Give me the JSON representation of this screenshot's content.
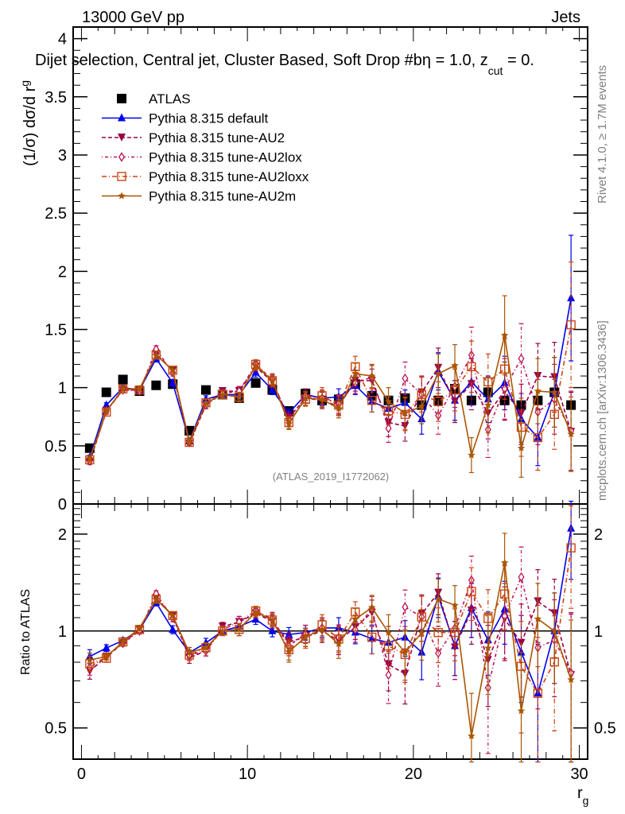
{
  "header": {
    "left": "13000 GeV pp",
    "right": "Jets"
  },
  "side_labels": {
    "rivet": "Rivet 4.1.0, ≥ 1.7M events",
    "mcplots": "mcplots.cern.ch [arXiv:1306.3436]"
  },
  "chart_data": [
    {
      "type": "line",
      "panel": "main",
      "title": "Dijet selection, Central jet, Cluster Based, Soft Drop #beta = 1.0, z_cut = 0.",
      "title_parts": {
        "main": "Dijet selection, Central jet, Cluster Based, Soft Drop #b",
        "eq": "η = 1.0, z",
        "sub": "cut",
        "tail": " = 0."
      },
      "xlabel": "",
      "ylabel": "(1/σ) dσ/d r",
      "ylabel_sub": "g",
      "xlim": [
        -0.5,
        30.5
      ],
      "ylim": [
        0,
        4.1
      ],
      "yticks": [
        0,
        0.5,
        1,
        1.5,
        2,
        2.5,
        3,
        3.5,
        4
      ],
      "ytick_labels": [
        "0",
        "0.5",
        "1",
        "1.5",
        "2",
        "2.5",
        "3",
        "3.5",
        "4"
      ],
      "watermark": "(ATLAS_2019_I1772062)",
      "legend_position": "top-left",
      "x": [
        0.5,
        1.5,
        2.5,
        3.5,
        4.5,
        5.5,
        6.5,
        7.5,
        8.5,
        9.5,
        10.5,
        11.5,
        12.5,
        13.5,
        14.5,
        15.5,
        16.5,
        17.5,
        18.5,
        19.5,
        20.5,
        21.5,
        22.5,
        23.5,
        24.5,
        25.5,
        26.5,
        27.5,
        28.5,
        29.5
      ],
      "series": [
        {
          "name": "ATLAS",
          "color": "#000000",
          "marker": "square",
          "style": "none",
          "values": [
            0.48,
            0.96,
            1.07,
            0.97,
            1.02,
            1.03,
            0.63,
            0.98,
            0.94,
            0.91,
            1.04,
            0.98,
            0.8,
            0.95,
            0.89,
            0.9,
            1.03,
            0.93,
            0.89,
            0.91,
            0.85,
            0.89,
            0.99,
            0.89,
            0.96,
            0.89,
            0.85,
            0.89,
            0.96,
            0.85
          ],
          "errors": [
            0.01,
            0.01,
            0.01,
            0.01,
            0.01,
            0.01,
            0.01,
            0.01,
            0.01,
            0.01,
            0.01,
            0.01,
            0.01,
            0.01,
            0.01,
            0.01,
            0.01,
            0.01,
            0.01,
            0.01,
            0.01,
            0.01,
            0.01,
            0.01,
            0.01,
            0.01,
            0.01,
            0.01,
            0.01,
            0.01
          ]
        },
        {
          "name": "Pythia 8.315 default",
          "color": "#0000ee",
          "marker": "triangle-up",
          "style": "solid",
          "values": [
            0.4,
            0.85,
            1.0,
            0.98,
            1.25,
            1.04,
            0.54,
            0.9,
            0.94,
            0.94,
            1.13,
            0.98,
            0.78,
            0.94,
            0.91,
            0.92,
            1.02,
            0.88,
            0.82,
            0.87,
            0.73,
            1.14,
            0.89,
            1.05,
            0.9,
            1.04,
            0.73,
            0.57,
            0.96,
            1.77
          ],
          "errors": [
            0.02,
            0.02,
            0.02,
            0.02,
            0.03,
            0.03,
            0.02,
            0.03,
            0.03,
            0.03,
            0.04,
            0.04,
            0.04,
            0.05,
            0.06,
            0.07,
            0.08,
            0.09,
            0.1,
            0.11,
            0.13,
            0.16,
            0.17,
            0.2,
            0.2,
            0.23,
            0.22,
            0.24,
            0.3,
            0.54
          ]
        },
        {
          "name": "Pythia 8.315 tune-AU2",
          "color": "#990044",
          "marker": "triangle-down",
          "style": "dashed",
          "values": [
            0.36,
            0.8,
            0.98,
            0.98,
            1.29,
            1.15,
            0.52,
            0.85,
            0.97,
            0.97,
            1.18,
            1.05,
            0.74,
            0.91,
            0.89,
            0.84,
            1.06,
            1.06,
            0.7,
            0.67,
            0.96,
            1.17,
            0.88,
            1.03,
            0.78,
            0.97,
            0.78,
            1.1,
            1.09,
            0.62
          ],
          "errors": [
            0.02,
            0.02,
            0.02,
            0.02,
            0.03,
            0.03,
            0.02,
            0.03,
            0.03,
            0.04,
            0.04,
            0.05,
            0.05,
            0.06,
            0.07,
            0.08,
            0.09,
            0.1,
            0.12,
            0.13,
            0.14,
            0.17,
            0.18,
            0.22,
            0.22,
            0.25,
            0.25,
            0.28,
            0.3,
            0.34
          ]
        },
        {
          "name": "Pythia 8.315 tune-AU2lox",
          "color": "#bb1155",
          "marker": "diamond-open",
          "style": "dashdot-fine",
          "values": [
            0.37,
            0.8,
            0.98,
            0.97,
            1.33,
            1.13,
            0.53,
            0.85,
            0.95,
            0.97,
            1.2,
            1.07,
            0.72,
            0.93,
            0.91,
            0.86,
            1.04,
            1.09,
            0.65,
            1.08,
            0.94,
            0.76,
            1.01,
            1.28,
            0.64,
            0.99,
            1.25,
            0.79,
            0.9,
            0.63
          ],
          "errors": [
            0.02,
            0.02,
            0.02,
            0.02,
            0.03,
            0.03,
            0.02,
            0.03,
            0.03,
            0.04,
            0.04,
            0.05,
            0.05,
            0.06,
            0.07,
            0.08,
            0.09,
            0.1,
            0.12,
            0.14,
            0.15,
            0.16,
            0.18,
            0.24,
            0.24,
            0.26,
            0.3,
            0.28,
            0.3,
            0.34
          ]
        },
        {
          "name": "Pythia 8.315 tune-AU2loxx",
          "color": "#cc4411",
          "marker": "square-open",
          "style": "dashdot",
          "values": [
            0.38,
            0.79,
            0.99,
            0.98,
            1.28,
            1.15,
            0.53,
            0.87,
            0.94,
            0.92,
            1.2,
            1.06,
            0.7,
            0.9,
            0.93,
            0.85,
            1.18,
            0.89,
            0.8,
            0.77,
            0.94,
            0.88,
            0.98,
            1.18,
            1.05,
            1.16,
            0.66,
            0.57,
            0.77,
            1.54
          ],
          "errors": [
            0.02,
            0.02,
            0.02,
            0.02,
            0.03,
            0.03,
            0.02,
            0.03,
            0.03,
            0.04,
            0.04,
            0.05,
            0.05,
            0.06,
            0.07,
            0.08,
            0.09,
            0.1,
            0.12,
            0.14,
            0.15,
            0.17,
            0.18,
            0.22,
            0.24,
            0.26,
            0.25,
            0.28,
            0.3,
            0.54
          ]
        },
        {
          "name": "Pythia 8.315 tune-AU2m",
          "color": "#aa5500",
          "marker": "star",
          "style": "solid",
          "values": [
            0.39,
            0.8,
            0.99,
            0.99,
            1.28,
            1.15,
            0.54,
            0.87,
            0.94,
            0.92,
            1.19,
            1.06,
            0.69,
            0.91,
            0.9,
            0.82,
            1.12,
            1.1,
            0.88,
            0.78,
            0.84,
            1.12,
            1.19,
            0.42,
            0.85,
            1.45,
            0.48,
            0.97,
            0.96,
            0.6
          ],
          "errors": [
            0.02,
            0.02,
            0.02,
            0.02,
            0.03,
            0.03,
            0.02,
            0.03,
            0.03,
            0.04,
            0.04,
            0.05,
            0.05,
            0.06,
            0.07,
            0.08,
            0.09,
            0.1,
            0.12,
            0.14,
            0.15,
            0.17,
            0.18,
            0.15,
            0.24,
            0.34,
            0.25,
            0.28,
            0.3,
            0.32
          ]
        }
      ]
    },
    {
      "type": "line",
      "panel": "ratio",
      "xlabel": "r",
      "xlabel_sub": "g",
      "ylabel": "Ratio to ATLAS",
      "xlim": [
        -0.5,
        30.5
      ],
      "ylim": [
        0.4,
        2.48
      ],
      "yscale": "log",
      "xticks": [
        0,
        10,
        20,
        30
      ],
      "xtick_labels": [
        "0",
        "10",
        "20",
        "30"
      ],
      "yticks": [
        0.5,
        1,
        2
      ],
      "ytick_labels": [
        "0.5",
        "1",
        "2"
      ],
      "reference_line": 1
    }
  ]
}
